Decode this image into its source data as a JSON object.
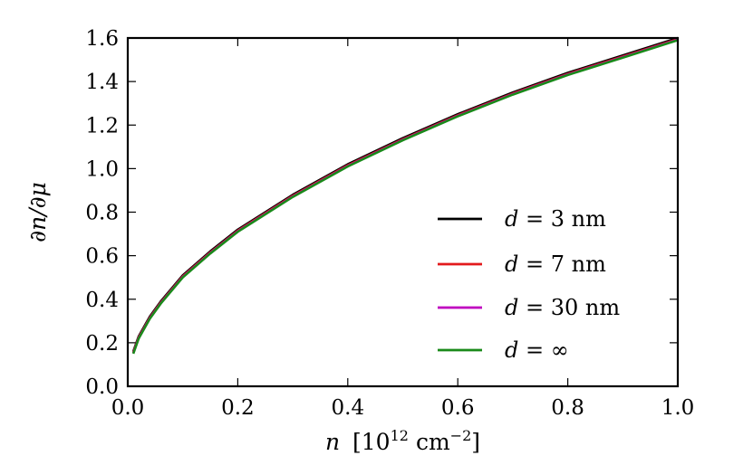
{
  "chart_data": {
    "type": "line",
    "title": "",
    "xlabel": {
      "var": "n",
      "bracket_open": "[",
      "base": "10",
      "exp": "12",
      "unit": "cm",
      "unit_exp": "−2",
      "bracket_close": "]"
    },
    "ylabel": "∂n/∂μ",
    "xlim": [
      0.0,
      1.0
    ],
    "ylim": [
      0.0,
      1.6
    ],
    "x_ticks": [
      "0.0",
      "0.2",
      "0.4",
      "0.6",
      "0.8",
      "1.0"
    ],
    "y_ticks": [
      "0.0",
      "0.2",
      "0.4",
      "0.6",
      "0.8",
      "1.0",
      "1.2",
      "1.4",
      "1.6"
    ],
    "grid": false,
    "legend_position": "lower-right",
    "series": [
      {
        "name": {
          "var": "d",
          "eq": " = ",
          "val": "3",
          "unit": " nm"
        },
        "color": "#000000",
        "x": [
          0.01,
          0.02,
          0.04,
          0.06,
          0.1,
          0.15,
          0.2,
          0.3,
          0.4,
          0.5,
          0.6,
          0.7,
          0.8,
          0.9,
          1.0
        ],
        "y": [
          0.16,
          0.23,
          0.32,
          0.39,
          0.51,
          0.62,
          0.72,
          0.88,
          1.02,
          1.14,
          1.25,
          1.35,
          1.44,
          1.52,
          1.6
        ]
      },
      {
        "name": {
          "var": "d",
          "eq": " = ",
          "val": "7",
          "unit": " nm"
        },
        "color": "#e31a1c",
        "x": [
          0.01,
          0.02,
          0.04,
          0.06,
          0.1,
          0.15,
          0.2,
          0.3,
          0.4,
          0.5,
          0.6,
          0.7,
          0.8,
          0.9,
          1.0
        ],
        "y": [
          0.155,
          0.225,
          0.315,
          0.385,
          0.505,
          0.615,
          0.715,
          0.875,
          1.015,
          1.135,
          1.245,
          1.345,
          1.435,
          1.515,
          1.595
        ]
      },
      {
        "name": {
          "var": "d",
          "eq": " = ",
          "val": "30",
          "unit": " nm"
        },
        "color": "#bf00bf",
        "x": [
          0.01,
          0.02,
          0.04,
          0.06,
          0.1,
          0.15,
          0.2,
          0.3,
          0.4,
          0.5,
          0.6,
          0.7,
          0.8,
          0.9,
          1.0
        ],
        "y": [
          0.152,
          0.222,
          0.312,
          0.382,
          0.502,
          0.612,
          0.712,
          0.872,
          1.012,
          1.132,
          1.242,
          1.342,
          1.432,
          1.512,
          1.592
        ]
      },
      {
        "name": {
          "var": "d",
          "eq": " = ",
          "val": "∞",
          "unit": ""
        },
        "color": "#1a8a1a",
        "x": [
          0.01,
          0.02,
          0.04,
          0.06,
          0.1,
          0.15,
          0.2,
          0.3,
          0.4,
          0.5,
          0.6,
          0.7,
          0.8,
          0.9,
          1.0
        ],
        "y": [
          0.15,
          0.22,
          0.31,
          0.38,
          0.5,
          0.61,
          0.71,
          0.87,
          1.01,
          1.13,
          1.24,
          1.34,
          1.43,
          1.51,
          1.59
        ]
      }
    ]
  }
}
